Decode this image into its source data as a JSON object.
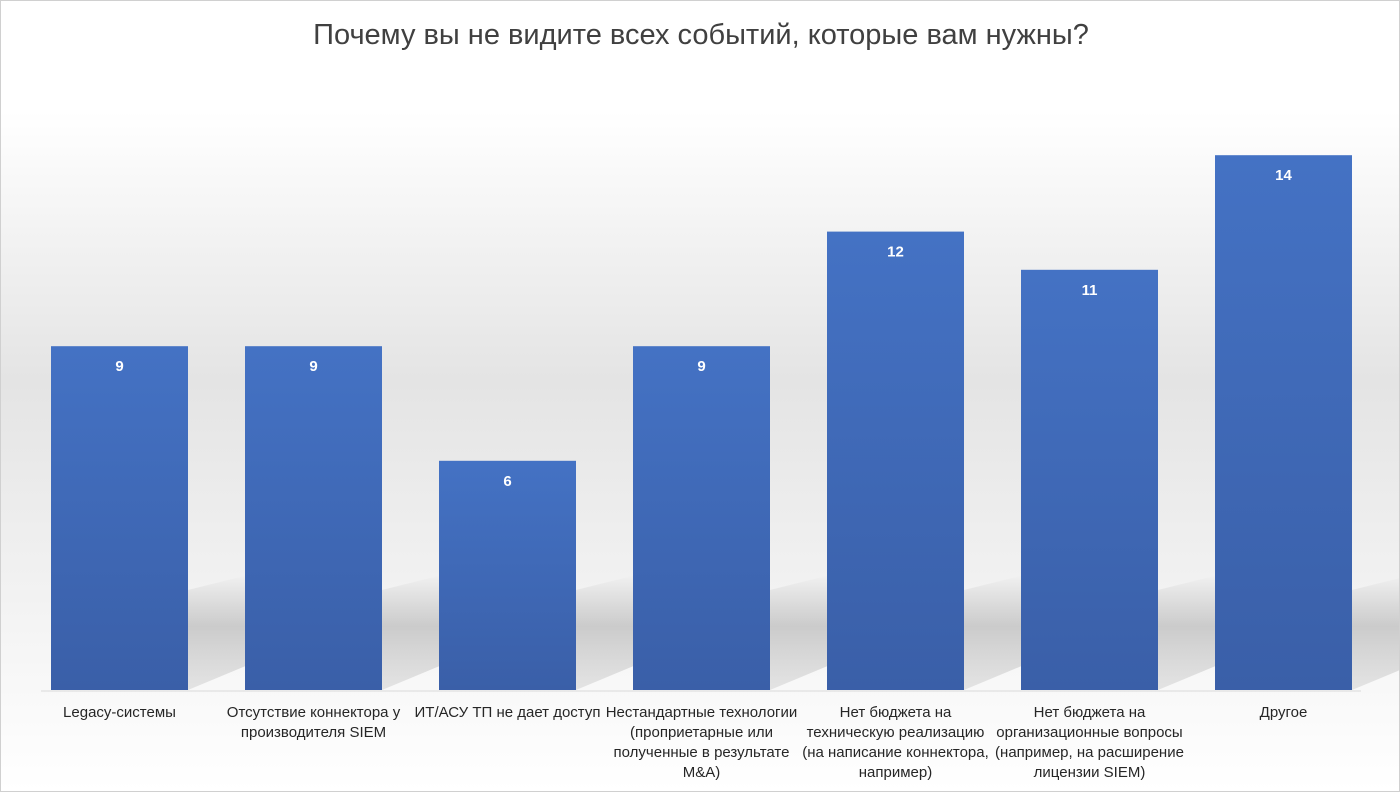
{
  "chart_data": {
    "type": "bar",
    "title": "Почему вы не видите всех событий, которые вам нужны?",
    "xlabel": "",
    "ylabel": "",
    "categories": [
      "Legacy-системы",
      "Отсутствие коннектора у производителя SIEM",
      "ИТ/АСУ ТП не дает доступ",
      "Нестандартные технологии (проприетарные или полученные в результате M&A)",
      "Нет бюджета на техническую реализацию (на написание коннектора, например)",
      "Нет бюджета на организационные вопросы (например, на расширение лицензии SIEM)",
      "Другое"
    ],
    "category_lines": [
      [
        "Legacy-системы"
      ],
      [
        "Отсутствие коннектора у",
        "производителя SIEM"
      ],
      [
        "ИТ/АСУ ТП не дает доступ"
      ],
      [
        "Нестандартные технологии",
        "(проприетарные или",
        "полученные в результате",
        "M&A)"
      ],
      [
        "Нет бюджета на",
        "техническую реализацию",
        "(на написание коннектора,",
        "например)"
      ],
      [
        "Нет бюджета на",
        "организационные вопросы",
        "(например, на расширение",
        "лицензии SIEM)"
      ],
      [
        "Другое"
      ]
    ],
    "values": [
      9,
      9,
      6,
      9,
      12,
      11,
      14
    ],
    "data_labels": [
      "9",
      "9",
      "6",
      "9",
      "12",
      "11",
      "14"
    ],
    "ylim": [
      0,
      14
    ],
    "grid": false,
    "legend": "none",
    "bar_color_top": "#4472C4",
    "bar_color_bottom": "#3a5fa8",
    "label_color": "#ffffff"
  }
}
